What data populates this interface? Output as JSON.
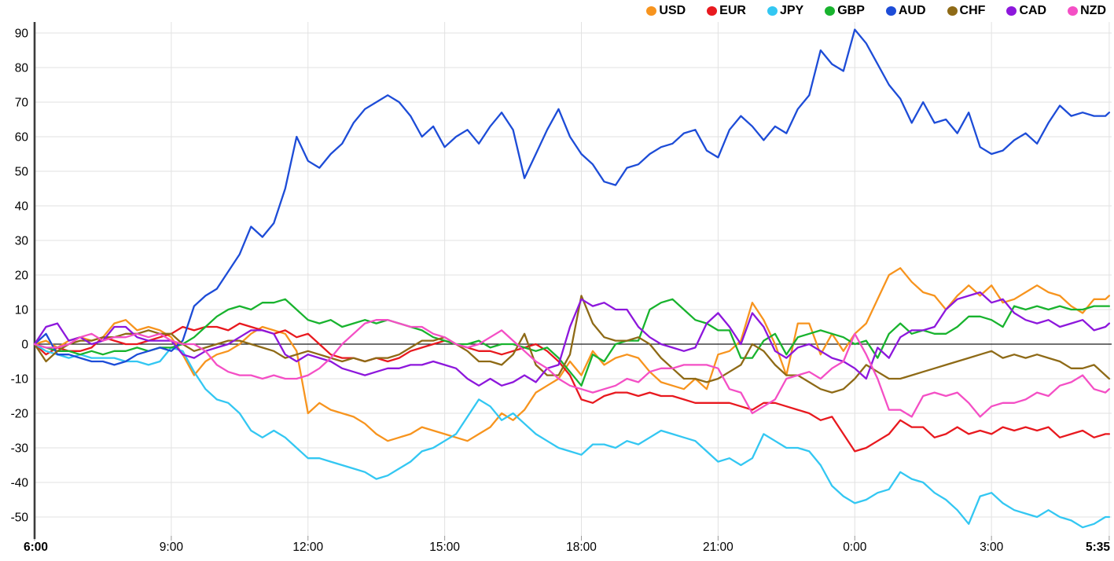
{
  "chart_data": {
    "type": "line",
    "title": "",
    "description": "Intraday currency strength lines for 8 currencies, baseline 0 at 6:00",
    "legend_position": "top-right",
    "grid": true,
    "colors": {
      "background": "#ffffff",
      "gridline": "#e2e2e2",
      "zero_line": "#1a1a1a",
      "axis_line": "#3c3c3c",
      "tick_label": "#000000"
    },
    "y_axis": {
      "min": -50,
      "max": 90,
      "step": 10,
      "ticks": [
        90,
        80,
        70,
        60,
        50,
        40,
        30,
        20,
        10,
        0,
        -10,
        -20,
        -30,
        -40,
        -50
      ]
    },
    "x_axis": {
      "unit": "time",
      "sample_interval_min": 15,
      "total_minutes": 1415,
      "ticks": [
        {
          "label": "6:00",
          "min": 0,
          "bold": true
        },
        {
          "label": "9:00",
          "min": 180,
          "bold": false
        },
        {
          "label": "12:00",
          "min": 360,
          "bold": false
        },
        {
          "label": "15:00",
          "min": 540,
          "bold": false
        },
        {
          "label": "18:00",
          "min": 720,
          "bold": false
        },
        {
          "label": "21:00",
          "min": 900,
          "bold": false
        },
        {
          "label": "0:00",
          "min": 1080,
          "bold": false
        },
        {
          "label": "3:00",
          "min": 1260,
          "bold": false
        },
        {
          "label": "5:35",
          "min": 1415,
          "bold": true
        }
      ]
    },
    "series": [
      {
        "name": "USD",
        "color": "#F7941E",
        "values": [
          0,
          1,
          -1,
          1,
          2,
          1,
          2,
          6,
          7,
          4,
          5,
          4,
          2,
          -3,
          -9,
          -5,
          -3,
          -2,
          0,
          3,
          5,
          4,
          3,
          -2,
          -20,
          -17,
          -19,
          -20,
          -21,
          -23,
          -26,
          -28,
          -27,
          -26,
          -24,
          -25,
          -26,
          -27,
          -28,
          -26,
          -24,
          -20,
          -22,
          -19,
          -14,
          -12,
          -10,
          -5,
          -9,
          -2,
          -6,
          -4,
          -3,
          -4,
          -8,
          -11,
          -12,
          -13,
          -10,
          -13,
          -3,
          -2,
          1,
          12,
          7,
          0,
          -9,
          6,
          6,
          -3,
          3,
          -2,
          3,
          6,
          13,
          20,
          22,
          18,
          15,
          14,
          10,
          14,
          17,
          14,
          17,
          12,
          13,
          15,
          17,
          15,
          14,
          11,
          9,
          13,
          13,
          14
        ]
      },
      {
        "name": "EUR",
        "color": "#E8191F",
        "values": [
          0,
          -3,
          -1,
          -2,
          -2,
          -1,
          2,
          1,
          0,
          0,
          1,
          2,
          3,
          5,
          4,
          5,
          5,
          4,
          6,
          5,
          4,
          3,
          4,
          2,
          3,
          0,
          -3,
          -4,
          -4,
          -5,
          -4,
          -5,
          -4,
          -2,
          -1,
          0,
          1,
          0,
          -1,
          -2,
          -2,
          -3,
          -2,
          -1,
          0,
          -2,
          -5,
          -9,
          -16,
          -17,
          -15,
          -14,
          -14,
          -15,
          -14,
          -15,
          -15,
          -16,
          -17,
          -17,
          -17,
          -17,
          -18,
          -19,
          -17,
          -17,
          -18,
          -19,
          -20,
          -22,
          -21,
          -26,
          -31,
          -30,
          -28,
          -26,
          -22,
          -24,
          -24,
          -27,
          -26,
          -24,
          -26,
          -25,
          -26,
          -24,
          -25,
          -24,
          -25,
          -24,
          -27,
          -26,
          -25,
          -27,
          -26,
          -26
        ]
      },
      {
        "name": "JPY",
        "color": "#33C7F2",
        "values": [
          0,
          -2,
          -3,
          -4,
          -3,
          -4,
          -4,
          -4,
          -5,
          -5,
          -6,
          -5,
          -1,
          -2,
          -8,
          -13,
          -16,
          -17,
          -20,
          -25,
          -27,
          -25,
          -27,
          -30,
          -33,
          -33,
          -34,
          -35,
          -36,
          -37,
          -39,
          -38,
          -36,
          -34,
          -31,
          -30,
          -28,
          -26,
          -21,
          -16,
          -18,
          -22,
          -20,
          -23,
          -26,
          -28,
          -30,
          -31,
          -32,
          -29,
          -29,
          -30,
          -28,
          -29,
          -27,
          -25,
          -26,
          -27,
          -28,
          -31,
          -34,
          -33,
          -35,
          -33,
          -26,
          -28,
          -30,
          -30,
          -31,
          -35,
          -41,
          -44,
          -46,
          -45,
          -43,
          -42,
          -37,
          -39,
          -40,
          -43,
          -45,
          -48,
          -52,
          -44,
          -43,
          -46,
          -48,
          -49,
          -50,
          -48,
          -50,
          -51,
          -53,
          -52,
          -50,
          -50
        ]
      },
      {
        "name": "GBP",
        "color": "#18B32E",
        "values": [
          0,
          -1,
          -2,
          -2,
          -3,
          -2,
          -3,
          -2,
          -2,
          -1,
          -2,
          -1,
          -1,
          0,
          2,
          5,
          8,
          10,
          11,
          10,
          12,
          12,
          13,
          10,
          7,
          6,
          7,
          5,
          6,
          7,
          6,
          7,
          6,
          5,
          4,
          2,
          1,
          0,
          0,
          1,
          -1,
          0,
          0,
          -1,
          -2,
          -1,
          -4,
          -8,
          -12,
          -3,
          -5,
          0,
          1,
          1,
          10,
          12,
          13,
          10,
          7,
          6,
          4,
          4,
          -4,
          -4,
          1,
          3,
          -3,
          2,
          3,
          4,
          3,
          2,
          0,
          1,
          -4,
          3,
          6,
          3,
          4,
          3,
          3,
          5,
          8,
          8,
          7,
          5,
          11,
          10,
          11,
          10,
          11,
          10,
          10,
          11,
          11,
          11
        ]
      },
      {
        "name": "AUD",
        "color": "#1D4CD7",
        "values": [
          0,
          3,
          -3,
          -3,
          -4,
          -5,
          -5,
          -6,
          -5,
          -3,
          -2,
          -1,
          -2,
          1,
          11,
          14,
          16,
          21,
          26,
          34,
          31,
          35,
          45,
          60,
          53,
          51,
          55,
          58,
          64,
          68,
          70,
          72,
          70,
          66,
          60,
          63,
          57,
          60,
          62,
          58,
          63,
          67,
          62,
          48,
          55,
          62,
          68,
          60,
          55,
          52,
          47,
          46,
          51,
          52,
          55,
          57,
          58,
          61,
          62,
          56,
          54,
          62,
          66,
          63,
          59,
          63,
          61,
          68,
          72,
          85,
          81,
          79,
          91,
          87,
          81,
          75,
          71,
          64,
          70,
          64,
          65,
          61,
          67,
          57,
          55,
          56,
          59,
          61,
          58,
          64,
          69,
          66,
          67,
          66,
          66,
          67
        ]
      },
      {
        "name": "CHF",
        "color": "#8E6A16",
        "values": [
          0,
          -5,
          -2,
          0,
          1,
          1,
          2,
          2,
          3,
          3,
          4,
          3,
          3,
          0,
          -2,
          -1,
          0,
          1,
          1,
          0,
          -1,
          -2,
          -4,
          -3,
          -2,
          -3,
          -4,
          -5,
          -4,
          -5,
          -4,
          -4,
          -3,
          -1,
          1,
          1,
          2,
          0,
          -2,
          -5,
          -5,
          -6,
          -3,
          3,
          -6,
          -9,
          -9,
          -3,
          14,
          6,
          2,
          1,
          1,
          2,
          0,
          -4,
          -7,
          -10,
          -10,
          -11,
          -10,
          -8,
          -6,
          0,
          -2,
          -6,
          -9,
          -9,
          -11,
          -13,
          -14,
          -13,
          -10,
          -6,
          -8,
          -10,
          -10,
          -9,
          -8,
          -7,
          -6,
          -5,
          -4,
          -3,
          -2,
          -4,
          -3,
          -4,
          -3,
          -4,
          -5,
          -7,
          -7,
          -6,
          -9,
          -10
        ]
      },
      {
        "name": "CAD",
        "color": "#8D17DC",
        "values": [
          0,
          5,
          6,
          1,
          2,
          0,
          1,
          5,
          5,
          2,
          1,
          1,
          1,
          -3,
          -4,
          -2,
          -1,
          0,
          2,
          4,
          4,
          3,
          -3,
          -5,
          -3,
          -4,
          -5,
          -7,
          -8,
          -9,
          -8,
          -7,
          -7,
          -6,
          -6,
          -5,
          -6,
          -7,
          -10,
          -12,
          -10,
          -12,
          -11,
          -9,
          -11,
          -7,
          -6,
          5,
          13,
          11,
          12,
          10,
          10,
          5,
          2,
          0,
          -1,
          -2,
          -1,
          6,
          9,
          5,
          0,
          9,
          5,
          -2,
          -4,
          -1,
          0,
          -2,
          -4,
          -5,
          -7,
          -10,
          -1,
          -4,
          2,
          4,
          4,
          5,
          10,
          13,
          14,
          15,
          12,
          13,
          9,
          7,
          6,
          7,
          5,
          6,
          7,
          4,
          5,
          6
        ]
      },
      {
        "name": "NZD",
        "color": "#F44FC5",
        "values": [
          0,
          -1,
          -1,
          0,
          2,
          3,
          1,
          2,
          2,
          3,
          2,
          3,
          1,
          0,
          0,
          -2,
          -6,
          -8,
          -9,
          -9,
          -10,
          -9,
          -10,
          -10,
          -9,
          -7,
          -4,
          0,
          3,
          6,
          7,
          7,
          6,
          5,
          5,
          3,
          2,
          0,
          -1,
          0,
          2,
          4,
          1,
          -2,
          -5,
          -7,
          -10,
          -12,
          -13,
          -14,
          -13,
          -12,
          -10,
          -11,
          -8,
          -7,
          -7,
          -6,
          -6,
          -6,
          -7,
          -13,
          -14,
          -20,
          -18,
          -16,
          -10,
          -9,
          -8,
          -10,
          -7,
          -5,
          3,
          -3,
          -10,
          -19,
          -19,
          -21,
          -15,
          -14,
          -15,
          -14,
          -17,
          -21,
          -18,
          -17,
          -17,
          -16,
          -14,
          -15,
          -12,
          -11,
          -9,
          -13,
          -14,
          -13
        ]
      }
    ]
  }
}
